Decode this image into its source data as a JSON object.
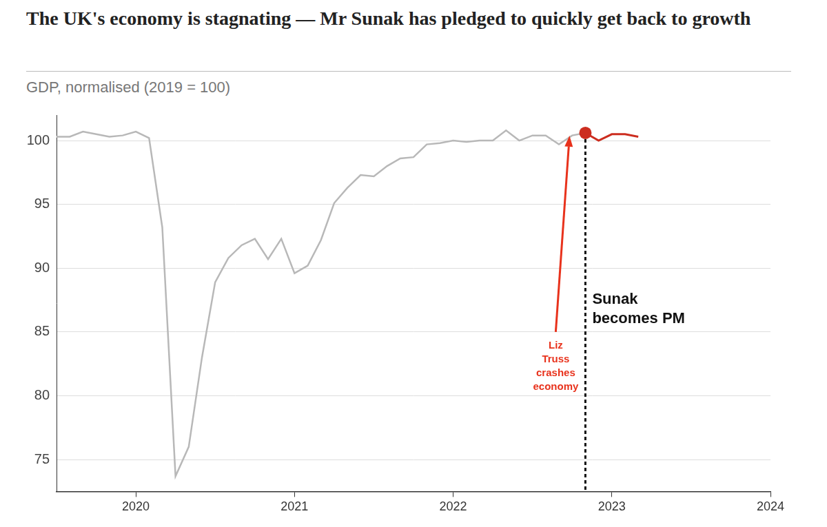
{
  "chart_data": {
    "type": "line",
    "title": "The UK's economy is stagnating — Mr Sunak has pledged to quickly get back to growth",
    "subtitle": "GDP, normalised (2019 = 100)",
    "categories": [
      null,
      null,
      null,
      null,
      null,
      null,
      "2020",
      null,
      null,
      null,
      null,
      null,
      null,
      null,
      null,
      null,
      null,
      null,
      "2021",
      null,
      null,
      null,
      null,
      null,
      null,
      null,
      null,
      null,
      null,
      null,
      "2022",
      null,
      null,
      null,
      null,
      null,
      null,
      null,
      null,
      null,
      null,
      null,
      "2023",
      null,
      null,
      null,
      null,
      null,
      null,
      null,
      null,
      null,
      null,
      null,
      "2024"
    ],
    "series": [
      {
        "color": "#b8b8b8",
        "values": [
          100.3,
          100.3,
          100.7,
          100.5,
          100.3,
          100.4,
          100.7,
          100.2,
          93.2,
          73.7,
          76.0,
          83.0,
          88.9,
          90.8,
          91.8,
          92.3,
          90.7,
          92.3,
          89.6,
          90.2,
          92.2,
          95.1,
          96.3,
          97.3,
          97.2,
          98.0,
          98.6,
          98.7,
          99.7,
          99.8,
          100.0,
          99.9,
          100.0,
          100.0,
          100.8,
          100.0,
          100.4,
          100.4,
          99.7,
          100.4,
          100.6,
          null,
          null,
          null,
          null,
          null,
          null,
          null,
          null,
          null,
          null,
          null,
          null,
          null,
          null
        ]
      },
      {
        "color": "#cc2d1f",
        "marker": "circle",
        "values": [
          null,
          null,
          null,
          null,
          null,
          null,
          null,
          null,
          null,
          null,
          null,
          null,
          null,
          null,
          null,
          null,
          null,
          null,
          null,
          null,
          null,
          null,
          null,
          null,
          null,
          null,
          null,
          null,
          null,
          null,
          null,
          null,
          null,
          null,
          null,
          null,
          null,
          null,
          null,
          null,
          100.6,
          100.0,
          100.5,
          100.5,
          100.3,
          null,
          null,
          null,
          null,
          null,
          null,
          null,
          null,
          null,
          null
        ]
      }
    ],
    "ylim": [
      72.5,
      102
    ],
    "yticks": [
      75,
      80,
      85,
      90,
      95,
      100
    ],
    "grid": true,
    "annotations": [
      {
        "text": "Liz Truss crashes economy",
        "x": 38.8,
        "y": 100.6,
        "color": "#e8321c"
      },
      {
        "text": "Sunak becomes PM",
        "x": 40,
        "line_style": "dashed",
        "color": "#111111"
      }
    ]
  }
}
